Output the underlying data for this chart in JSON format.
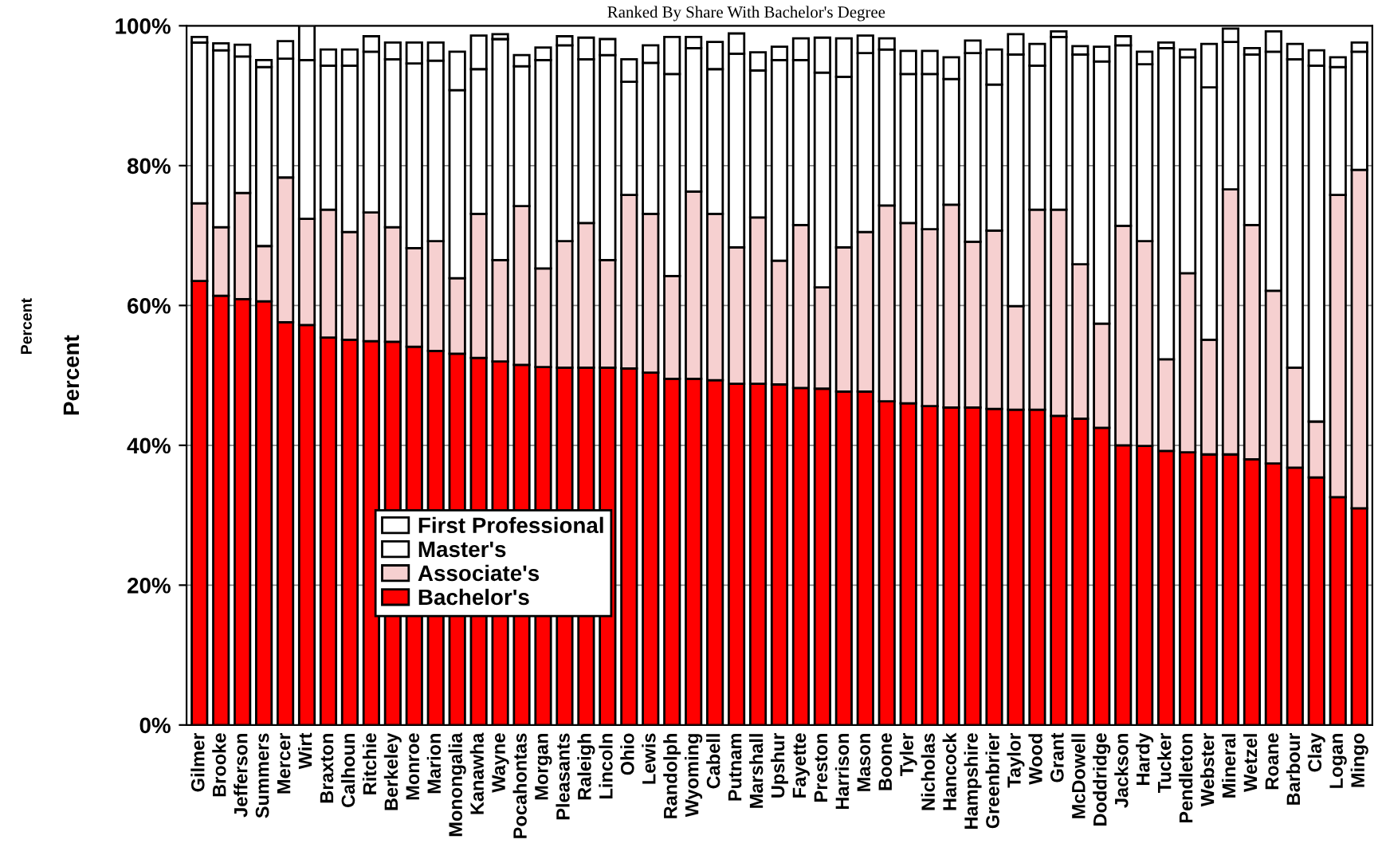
{
  "chart_data": {
    "type": "bar",
    "stacked": true,
    "title": "Ranked By Share With Bachelor's Degree",
    "ylabel": "Percent",
    "annotations": [
      "Percent"
    ],
    "categories": [
      "Gilmer",
      "Brooke",
      "Jefferson",
      "Summers",
      "Mercer",
      "Wirt",
      "Braxton",
      "Calhoun",
      "Ritchie",
      "Berkeley",
      "Monroe",
      "Marion",
      "Monongalia",
      "Kanawha",
      "Wayne",
      "Pocahontas",
      "Morgan",
      "Pleasants",
      "Raleigh",
      "Lincoln",
      "Ohio",
      "Lewis",
      "Randolph",
      "Wyoming",
      "Cabell",
      "Putnam",
      "Marshall",
      "Upshur",
      "Fayette",
      "Preston",
      "Harrison",
      "Mason",
      "Boone",
      "Tyler",
      "Nicholas",
      "Hancock",
      "Hampshire",
      "Greenbrier",
      "Taylor",
      "Wood",
      "Grant",
      "McDowell",
      "Doddridge",
      "Jackson",
      "Hardy",
      "Tucker",
      "Pendleton",
      "Webster",
      "Mineral",
      "Wetzel",
      "Roane",
      "Barbour",
      "Clay",
      "Logan",
      "Mingo"
    ],
    "series": [
      {
        "name": "Bachelor's",
        "color": "#ff0000",
        "values": [
          63.5,
          61.4,
          60.9,
          60.6,
          57.6,
          57.2,
          55.4,
          55.1,
          54.9,
          54.8,
          54.1,
          53.5,
          53.1,
          52.5,
          52.0,
          51.5,
          51.2,
          51.1,
          51.1,
          51.1,
          51.0,
          50.4,
          49.5,
          49.5,
          49.3,
          48.8,
          48.8,
          48.7,
          48.2,
          48.1,
          47.7,
          47.7,
          46.3,
          46.0,
          45.6,
          45.4,
          45.4,
          45.2,
          45.1,
          45.1,
          44.2,
          43.8,
          42.5,
          40.0,
          39.9,
          39.2,
          39.0,
          38.7,
          38.7,
          38.0,
          37.4,
          36.8,
          35.4,
          32.6,
          31.0
        ]
      },
      {
        "name": "Associate's",
        "color": "#f6d0d0",
        "values": [
          11.1,
          9.8,
          15.2,
          7.9,
          20.7,
          15.2,
          18.3,
          15.4,
          18.4,
          16.4,
          14.1,
          15.7,
          10.8,
          20.6,
          14.5,
          22.7,
          14.1,
          18.1,
          20.7,
          15.4,
          24.8,
          22.7,
          14.7,
          26.8,
          23.8,
          19.5,
          23.8,
          17.7,
          23.3,
          14.5,
          20.6,
          22.8,
          28.0,
          25.8,
          25.3,
          29.0,
          23.7,
          25.5,
          14.8,
          28.6,
          29.5,
          22.1,
          14.9,
          31.4,
          29.3,
          13.1,
          25.6,
          16.4,
          37.9,
          33.5,
          24.7,
          14.3,
          8.0,
          43.2,
          48.4
        ]
      },
      {
        "name": "Master's",
        "color": "#ffffff",
        "values": [
          23.0,
          25.3,
          19.5,
          25.6,
          17.0,
          22.7,
          20.6,
          23.8,
          23.0,
          24.0,
          26.4,
          25.8,
          26.9,
          20.7,
          31.6,
          20.0,
          29.8,
          28.0,
          23.4,
          29.3,
          16.2,
          21.6,
          28.9,
          20.5,
          20.7,
          27.7,
          21.0,
          28.7,
          23.6,
          30.7,
          24.4,
          25.6,
          22.3,
          21.3,
          22.2,
          18.0,
          27.0,
          20.9,
          36.0,
          20.6,
          24.7,
          30.0,
          37.5,
          25.8,
          25.3,
          44.5,
          30.9,
          36.1,
          21.1,
          24.4,
          34.2,
          44.1,
          50.9,
          18.3,
          16.9
        ]
      },
      {
        "name": "First Professional",
        "color": "#ffffff",
        "values": [
          0.8,
          1.0,
          1.7,
          1.0,
          2.5,
          4.9,
          2.3,
          2.3,
          2.2,
          2.4,
          3.0,
          2.6,
          5.5,
          4.8,
          0.7,
          1.6,
          1.8,
          1.3,
          3.1,
          2.3,
          3.2,
          2.5,
          5.3,
          1.6,
          3.9,
          2.9,
          2.6,
          1.9,
          3.1,
          5.0,
          5.5,
          2.5,
          1.6,
          3.3,
          3.3,
          3.1,
          1.8,
          5.0,
          2.9,
          3.1,
          0.8,
          1.2,
          2.1,
          1.3,
          1.8,
          0.8,
          1.1,
          6.2,
          1.9,
          0.9,
          2.9,
          2.2,
          2.2,
          1.4,
          1.3
        ]
      }
    ],
    "ylim": [
      0,
      100
    ],
    "yticks": [
      {
        "value": 0,
        "label": "0%"
      },
      {
        "value": 20,
        "label": "20%"
      },
      {
        "value": 40,
        "label": "40%"
      },
      {
        "value": 60,
        "label": "60%"
      },
      {
        "value": 80,
        "label": "80%"
      },
      {
        "value": 100,
        "label": "100%"
      }
    ],
    "grid": "y",
    "legend": "bottom left"
  }
}
